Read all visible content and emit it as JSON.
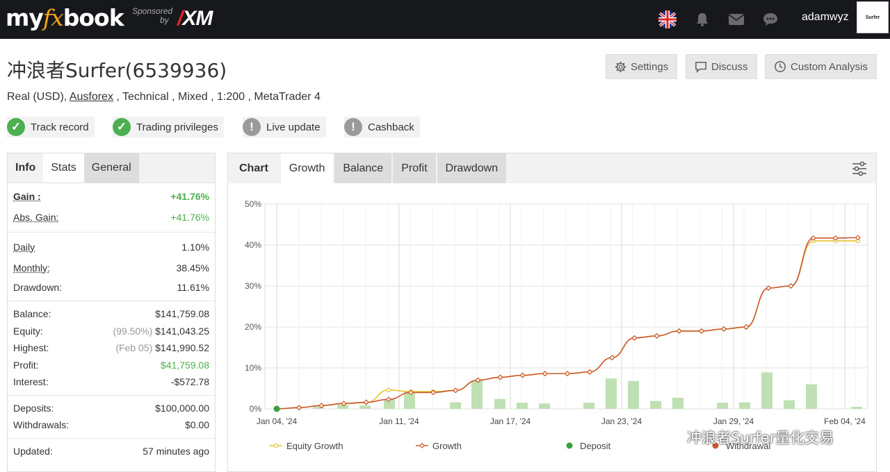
{
  "brand": {
    "logo_pre": "my",
    "logo_fx": "fx",
    "logo_post": "book",
    "sponsored": "Sponsored",
    "by": "by",
    "xm": "XM"
  },
  "nav": {
    "username": "adamwyz",
    "icons": [
      "uk-flag-icon",
      "bell-icon",
      "mail-icon",
      "chat-icon"
    ],
    "avatar_text": "Surfer"
  },
  "header": {
    "title": "冲浪者Surfer(6539936)",
    "buttons": {
      "settings": "Settings",
      "discuss": "Discuss",
      "custom": "Custom Analysis"
    },
    "subtitle": {
      "pre": "Real (USD), ",
      "broker": "Ausforex",
      "post": " , Technical , Mixed , 1:200 , MetaTrader 4"
    },
    "badges": [
      {
        "label": "Track record",
        "status": "ok"
      },
      {
        "label": "Trading privileges",
        "status": "ok"
      },
      {
        "label": "Live update",
        "status": "info"
      },
      {
        "label": "Cashback",
        "status": "info"
      }
    ]
  },
  "left_tabs": {
    "info": "Info",
    "stats": "Stats",
    "general": "General"
  },
  "stats": {
    "gain": {
      "label": "Gain :",
      "value": "+41.76%"
    },
    "abs_gain": {
      "label": "Abs. Gain:",
      "value": "+41.76%"
    },
    "daily": {
      "label": "Daily",
      "value": "1.10%"
    },
    "monthly": {
      "label": "Monthly:",
      "value": "38.45%"
    },
    "drawdown": {
      "label": "Drawdown:",
      "value": "11.61%"
    },
    "balance": {
      "label": "Balance:",
      "value": "$141,759.08"
    },
    "equity": {
      "label": "Equity:",
      "note": "(99.50%)",
      "value": "$141,043.25"
    },
    "highest": {
      "label": "Highest:",
      "note": "(Feb 05)",
      "value": "$141,990.52"
    },
    "profit": {
      "label": "Profit:",
      "value": "$41,759.08"
    },
    "interest": {
      "label": "Interest:",
      "value": "-$572.78"
    },
    "deposits": {
      "label": "Deposits:",
      "value": "$100,000.00"
    },
    "withdrawals": {
      "label": "Withdrawals:",
      "value": "$0.00"
    },
    "updated": {
      "label": "Updated:",
      "value": "57 minutes ago"
    }
  },
  "chart_tabs": {
    "chart": "Chart",
    "growth": "Growth",
    "balance": "Balance",
    "profit": "Profit",
    "drawdown": "Drawdown"
  },
  "chart_data": {
    "type": "line",
    "ylim": [
      0,
      50
    ],
    "yticks": [
      "0%",
      "10%",
      "20%",
      "30%",
      "40%",
      "50%"
    ],
    "x_ticks": [
      "Jan 04, '24",
      "Jan 11, '24",
      "Jan 17, '24",
      "Jan 23, '24",
      "Jan 29, '24",
      "Feb 04, '24"
    ],
    "x": [
      "Jan 04",
      "Jan 05",
      "Jan 06",
      "Jan 07",
      "Jan 08",
      "Jan 09",
      "Jan 10",
      "Jan 11",
      "Jan 12",
      "Jan 13",
      "Jan 14",
      "Jan 15",
      "Jan 16",
      "Jan 17",
      "Jan 18",
      "Jan 19",
      "Jan 20",
      "Jan 21",
      "Jan 22",
      "Jan 23",
      "Jan 24",
      "Jan 25",
      "Jan 26",
      "Jan 27",
      "Jan 28",
      "Jan 29",
      "Jan 30",
      "Jan 31",
      "Feb 01",
      "Feb 02",
      "Feb 03",
      "Feb 04",
      "Feb 05"
    ],
    "series": [
      {
        "name": "Equity Growth",
        "color": "#e8c22a",
        "points": [
          [
            0,
            0
          ],
          [
            1,
            0.3
          ],
          [
            2,
            0.8
          ],
          [
            3,
            1.3
          ],
          [
            4,
            1.5
          ],
          [
            5,
            4.6
          ],
          [
            6,
            4.2
          ],
          [
            7,
            4.2
          ],
          [
            8,
            4.5
          ],
          [
            9,
            7.0
          ],
          [
            10,
            7.7
          ],
          [
            11,
            8.2
          ],
          [
            12,
            8.6
          ],
          [
            13,
            8.6
          ],
          [
            14,
            9.0
          ],
          [
            15,
            12.5
          ],
          [
            16,
            17.3
          ],
          [
            17,
            17.8
          ],
          [
            18,
            19.0
          ],
          [
            19,
            19.0
          ],
          [
            20,
            19.5
          ],
          [
            21,
            19.9
          ],
          [
            22,
            29.5
          ],
          [
            23,
            30.0
          ],
          [
            24,
            41.0
          ],
          [
            25,
            41.0
          ],
          [
            26,
            41.0
          ]
        ]
      },
      {
        "name": "Growth",
        "color": "#c9572d",
        "points": [
          [
            0,
            0
          ],
          [
            1,
            0.3
          ],
          [
            2,
            0.8
          ],
          [
            3,
            1.3
          ],
          [
            4,
            1.6
          ],
          [
            5,
            2.3
          ],
          [
            6,
            4.0
          ],
          [
            7,
            4.0
          ],
          [
            8,
            4.5
          ],
          [
            9,
            7.0
          ],
          [
            10,
            7.7
          ],
          [
            11,
            8.2
          ],
          [
            12,
            8.6
          ],
          [
            13,
            8.6
          ],
          [
            14,
            9.0
          ],
          [
            15,
            12.5
          ],
          [
            16,
            17.3
          ],
          [
            17,
            17.8
          ],
          [
            18,
            19.0
          ],
          [
            19,
            19.0
          ],
          [
            20,
            19.5
          ],
          [
            21,
            20.0
          ],
          [
            22,
            29.5
          ],
          [
            23,
            30.0
          ],
          [
            24,
            41.7
          ],
          [
            25,
            41.7
          ],
          [
            26,
            41.8
          ]
        ]
      }
    ],
    "deposit_point": [
      0,
      0
    ],
    "bars": [
      0.5,
      1.0,
      0.8,
      2.3,
      4.3,
      0,
      1.6,
      7.0,
      2.4,
      1.5,
      1.3,
      0,
      1.5,
      7.4,
      6.8,
      1.9,
      2.7,
      0,
      1.5,
      1.6,
      8.9,
      2.1,
      6.0,
      0.5
    ],
    "legend": [
      {
        "label": "Equity Growth",
        "type": "line-yellow"
      },
      {
        "label": "Growth",
        "type": "line-red"
      },
      {
        "label": "Deposit",
        "type": "dot-green"
      },
      {
        "label": "Withdrawal",
        "type": "dot-red"
      }
    ]
  },
  "watermark": "冲浪者Surfer量化交易"
}
